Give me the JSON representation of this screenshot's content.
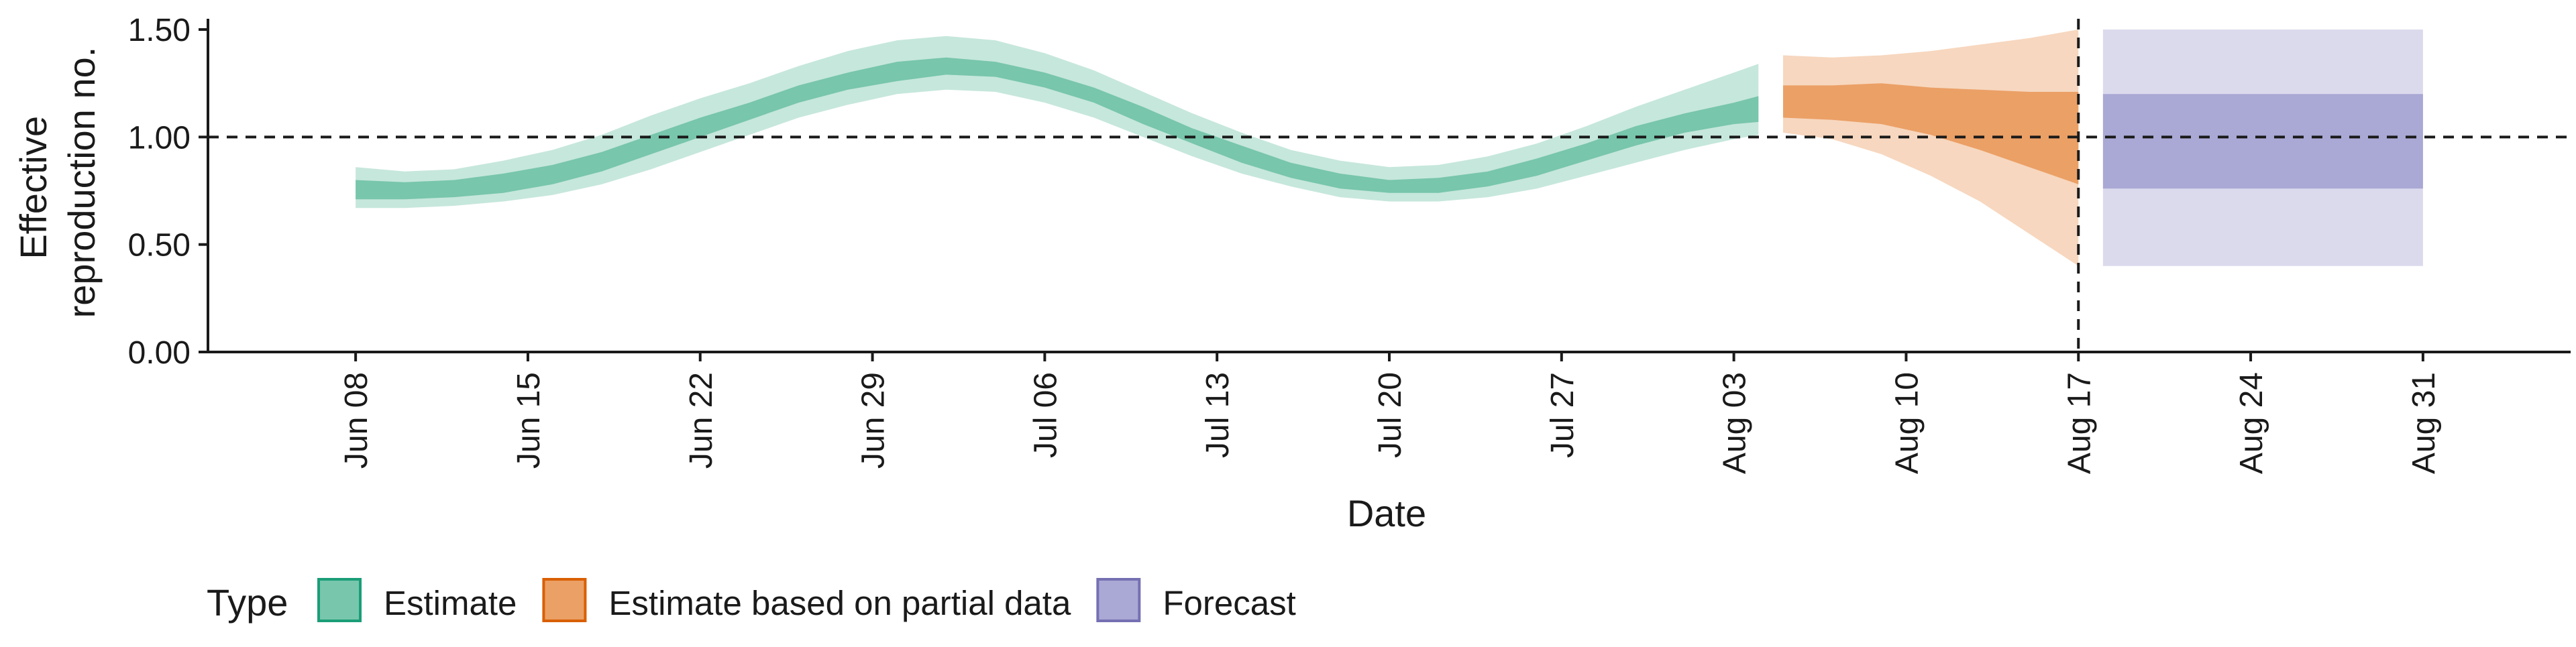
{
  "chart_data": {
    "type": "area",
    "title": "",
    "xlabel": "Date",
    "ylabel": [
      "Effective",
      "reproduction no."
    ],
    "ylim": [
      0,
      1.55
    ],
    "y_ticks": [
      0.0,
      0.5,
      1.0,
      1.5
    ],
    "y_tick_labels": [
      "0.00",
      "0.50",
      "1.00",
      "1.50"
    ],
    "x_range": [
      "2020-06-02",
      "2020-09-06"
    ],
    "x_ticks": [
      "2020-06-08",
      "2020-06-15",
      "2020-06-22",
      "2020-06-29",
      "2020-07-06",
      "2020-07-13",
      "2020-07-20",
      "2020-07-27",
      "2020-08-03",
      "2020-08-10",
      "2020-08-17",
      "2020-08-24",
      "2020-08-31"
    ],
    "x_tick_labels": [
      "Jun 08",
      "Jun 15",
      "Jun 22",
      "Jun 29",
      "Jul 06",
      "Jul 13",
      "Jul 20",
      "Jul 27",
      "Aug 03",
      "Aug 10",
      "Aug 17",
      "Aug 24",
      "Aug 31"
    ],
    "reference_lines": {
      "horizontal_y": 1.0,
      "vertical_x": "2020-08-17"
    },
    "grid": false,
    "legend": {
      "position": "bottom",
      "title": "Type",
      "entries": [
        {
          "label": "Estimate",
          "fill": "#78c6ac",
          "stroke": "#1b9e77"
        },
        {
          "label": "Estimate based on partial data",
          "fill": "#eba066",
          "stroke": "#d95f02"
        },
        {
          "label": "Forecast",
          "fill": "#aaa8d4",
          "stroke": "#7570b3"
        }
      ]
    },
    "series": [
      {
        "name": "Estimate",
        "color": "#1b9e77",
        "x": [
          "2020-06-08",
          "2020-06-10",
          "2020-06-12",
          "2020-06-14",
          "2020-06-16",
          "2020-06-18",
          "2020-06-20",
          "2020-06-22",
          "2020-06-24",
          "2020-06-26",
          "2020-06-28",
          "2020-06-30",
          "2020-07-02",
          "2020-07-04",
          "2020-07-06",
          "2020-07-08",
          "2020-07-10",
          "2020-07-12",
          "2020-07-14",
          "2020-07-16",
          "2020-07-18",
          "2020-07-20",
          "2020-07-22",
          "2020-07-24",
          "2020-07-26",
          "2020-07-28",
          "2020-07-30",
          "2020-08-01",
          "2020-08-03",
          "2020-08-04"
        ],
        "upper_90": [
          0.86,
          0.84,
          0.85,
          0.89,
          0.94,
          1.01,
          1.1,
          1.18,
          1.25,
          1.33,
          1.4,
          1.45,
          1.47,
          1.45,
          1.39,
          1.31,
          1.21,
          1.11,
          1.02,
          0.94,
          0.89,
          0.86,
          0.87,
          0.91,
          0.97,
          1.05,
          1.14,
          1.22,
          1.3,
          1.34
        ],
        "upper_50": [
          0.8,
          0.79,
          0.8,
          0.83,
          0.87,
          0.93,
          1.01,
          1.09,
          1.16,
          1.24,
          1.3,
          1.35,
          1.37,
          1.35,
          1.3,
          1.23,
          1.14,
          1.04,
          0.96,
          0.88,
          0.83,
          0.8,
          0.81,
          0.84,
          0.9,
          0.97,
          1.05,
          1.11,
          1.16,
          1.19
        ],
        "lower_50": [
          0.71,
          0.71,
          0.72,
          0.74,
          0.78,
          0.84,
          0.92,
          1.0,
          1.08,
          1.16,
          1.22,
          1.26,
          1.29,
          1.28,
          1.23,
          1.16,
          1.06,
          0.97,
          0.88,
          0.81,
          0.76,
          0.74,
          0.74,
          0.77,
          0.82,
          0.89,
          0.96,
          1.02,
          1.06,
          1.07
        ],
        "lower_90": [
          0.67,
          0.67,
          0.68,
          0.7,
          0.73,
          0.78,
          0.85,
          0.93,
          1.01,
          1.09,
          1.15,
          1.2,
          1.22,
          1.21,
          1.16,
          1.09,
          1.0,
          0.91,
          0.83,
          0.77,
          0.72,
          0.7,
          0.7,
          0.72,
          0.76,
          0.82,
          0.88,
          0.94,
          0.99,
          1.01
        ]
      },
      {
        "name": "Estimate based on partial data",
        "color": "#d95f02",
        "x": [
          "2020-08-05",
          "2020-08-07",
          "2020-08-09",
          "2020-08-11",
          "2020-08-13",
          "2020-08-15",
          "2020-08-17"
        ],
        "upper_90": [
          1.38,
          1.37,
          1.38,
          1.4,
          1.43,
          1.46,
          1.5
        ],
        "upper_50": [
          1.24,
          1.24,
          1.25,
          1.23,
          1.22,
          1.21,
          1.21
        ],
        "lower_50": [
          1.09,
          1.08,
          1.06,
          1.01,
          0.94,
          0.86,
          0.78
        ],
        "lower_90": [
          1.02,
          0.99,
          0.92,
          0.82,
          0.7,
          0.55,
          0.4
        ]
      },
      {
        "name": "Forecast",
        "color": "#7570b3",
        "x": [
          "2020-08-18",
          "2020-08-31"
        ],
        "upper_90": [
          1.5,
          1.5
        ],
        "upper_50": [
          1.2,
          1.2
        ],
        "lower_50": [
          0.76,
          0.76
        ],
        "lower_90": [
          0.4,
          0.4
        ]
      }
    ]
  }
}
